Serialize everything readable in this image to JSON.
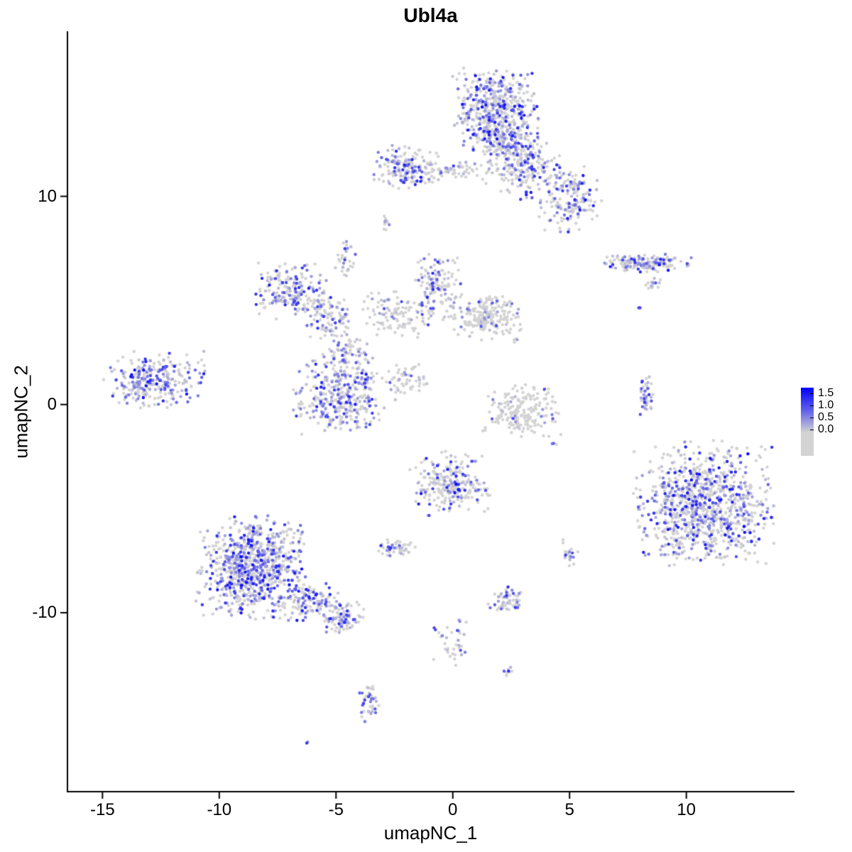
{
  "chart_data": {
    "type": "scatter",
    "title": "Ubl4a",
    "xlabel": "umapNC_1",
    "ylabel": "umapNC_2",
    "xlim": [
      -16.5,
      14.6
    ],
    "ylim": [
      -18.6,
      17.9
    ],
    "x_ticks": [
      "-15",
      "-10",
      "-5",
      "0",
      "5",
      "10"
    ],
    "y_ticks": [
      "-10",
      "0",
      "10"
    ],
    "grid": false,
    "legend": {
      "position": "right",
      "labels": [
        "1.5",
        "1.0",
        "0.5",
        "0.0"
      ],
      "low_color": "#d3d3d3",
      "high_color": "#0000ff",
      "vmax": 1.6
    },
    "point_color_zero": "#d3d3d3",
    "clusters": [
      {
        "name": "top-main",
        "n": 520,
        "cx": 1.8,
        "cy": 14.1,
        "sx": 0.85,
        "sy": 0.95,
        "colored": 0.45,
        "vmax": 1.5
      },
      {
        "name": "top-main-neck",
        "n": 90,
        "cx": 2.2,
        "cy": 12.6,
        "sx": 0.5,
        "sy": 0.5,
        "colored": 0.4,
        "vmax": 1.3
      },
      {
        "name": "top-right-branch",
        "n": 200,
        "cx": 3.0,
        "cy": 11.6,
        "sx": 0.75,
        "sy": 0.65,
        "colored": 0.4,
        "vmax": 1.4
      },
      {
        "name": "top-right-lower",
        "n": 180,
        "cx": 5.0,
        "cy": 9.9,
        "sx": 0.65,
        "sy": 0.75,
        "colored": 0.45,
        "vmax": 1.5
      },
      {
        "name": "dark-blob",
        "n": 7,
        "cx": 3.2,
        "cy": 10.1,
        "sx": 0.14,
        "sy": 0.2,
        "colored": 1.0,
        "vmax": 1.7
      },
      {
        "name": "top-left",
        "n": 150,
        "cx": -2.1,
        "cy": 11.4,
        "sx": 0.7,
        "sy": 0.5,
        "colored": 0.5,
        "vmax": 1.5
      },
      {
        "name": "top-strip",
        "n": 70,
        "cx": 0.2,
        "cy": 11.2,
        "sx": 1.2,
        "sy": 0.25,
        "colored": 0.35,
        "vmax": 1.2
      },
      {
        "name": "small-upper-left",
        "n": 28,
        "cx": -4.6,
        "cy": 7.1,
        "sx": 0.2,
        "sy": 0.45,
        "colored": 0.5,
        "vmax": 1.2
      },
      {
        "name": "tiny-mid-high",
        "n": 10,
        "cx": -2.9,
        "cy": 8.7,
        "sx": 0.15,
        "sy": 0.25,
        "colored": 0.3,
        "vmax": 0.9
      },
      {
        "name": "mid-left",
        "n": 190,
        "cx": -6.9,
        "cy": 5.5,
        "sx": 0.7,
        "sy": 0.65,
        "colored": 0.5,
        "vmax": 1.4
      },
      {
        "name": "arc-upper",
        "n": 90,
        "cx": -5.3,
        "cy": 4.2,
        "sx": 0.5,
        "sy": 0.6,
        "colored": 0.4,
        "vmax": 1.2
      },
      {
        "name": "arc-lower",
        "n": 90,
        "cx": -4.5,
        "cy": 2.6,
        "sx": 0.5,
        "sy": 0.6,
        "colored": 0.4,
        "vmax": 1.2
      },
      {
        "name": "center-top",
        "n": 130,
        "cx": -0.7,
        "cy": 5.7,
        "sx": 0.5,
        "sy": 0.75,
        "colored": 0.4,
        "vmax": 1.3
      },
      {
        "name": "center-mid",
        "n": 110,
        "cx": -2.3,
        "cy": 4.4,
        "sx": 0.75,
        "sy": 0.55,
        "colored": 0.3,
        "vmax": 1.1
      },
      {
        "name": "right-of-center",
        "n": 200,
        "cx": 1.5,
        "cy": 4.2,
        "sx": 0.75,
        "sy": 0.5,
        "colored": 0.2,
        "vmax": 1.1
      },
      {
        "name": "center-cluster",
        "n": 340,
        "cx": -4.9,
        "cy": 0.4,
        "sx": 0.9,
        "sy": 0.85,
        "colored": 0.5,
        "vmax": 1.4
      },
      {
        "name": "diag-streak",
        "n": 55,
        "cx": -2.0,
        "cy": 1.1,
        "sx": 0.42,
        "sy": 0.4,
        "colored": 0.2,
        "vmax": 1.0
      },
      {
        "name": "far-left",
        "n": 280,
        "cx": -12.8,
        "cy": 1.2,
        "sx": 1.0,
        "sy": 0.62,
        "colored": 0.55,
        "vmax": 1.5
      },
      {
        "name": "crescent",
        "n": 190,
        "cx": 3.0,
        "cy": -0.3,
        "sx": 0.8,
        "sy": 0.58,
        "colored": 0.08,
        "vmax": 1.2
      },
      {
        "name": "small-vertical",
        "n": 38,
        "cx": 8.3,
        "cy": 0.4,
        "sx": 0.13,
        "sy": 0.48,
        "colored": 0.5,
        "vmax": 1.3
      },
      {
        "name": "right-band",
        "n": 170,
        "cx": 8.3,
        "cy": 6.8,
        "sx": 0.9,
        "sy": 0.2,
        "colored": 0.45,
        "vmax": 1.5
      },
      {
        "name": "right-band-sub",
        "n": 16,
        "cx": 8.6,
        "cy": 5.8,
        "sx": 0.22,
        "sy": 0.16,
        "colored": 0.3,
        "vmax": 1.0
      },
      {
        "name": "big-right",
        "n": 950,
        "cx": 10.8,
        "cy": -4.8,
        "sx": 1.4,
        "sy": 1.4,
        "colored": 0.45,
        "vmax": 1.5
      },
      {
        "name": "bottom-left",
        "n": 820,
        "cx": -8.6,
        "cy": -7.8,
        "sx": 1.1,
        "sy": 1.15,
        "colored": 0.55,
        "vmax": 1.5
      },
      {
        "name": "bottom-left-tail",
        "n": 120,
        "cx": -6.2,
        "cy": -9.4,
        "sx": 0.65,
        "sy": 0.5,
        "colored": 0.5,
        "vmax": 1.4
      },
      {
        "name": "bottom-left-tail2",
        "n": 90,
        "cx": -4.8,
        "cy": -10.3,
        "sx": 0.5,
        "sy": 0.4,
        "colored": 0.5,
        "vmax": 1.4
      },
      {
        "name": "mid-bottom",
        "n": 250,
        "cx": -0.1,
        "cy": -3.8,
        "sx": 0.8,
        "sy": 0.72,
        "colored": 0.35,
        "vmax": 1.5
      },
      {
        "name": "small-left-low",
        "n": 48,
        "cx": -2.4,
        "cy": -6.9,
        "sx": 0.38,
        "sy": 0.22,
        "colored": 0.4,
        "vmax": 1.3
      },
      {
        "name": "small-right-low",
        "n": 22,
        "cx": 5.0,
        "cy": -7.1,
        "sx": 0.17,
        "sy": 0.3,
        "colored": 0.3,
        "vmax": 1.2
      },
      {
        "name": "small-low-mid",
        "n": 55,
        "cx": 2.3,
        "cy": -9.4,
        "sx": 0.36,
        "sy": 0.3,
        "colored": 0.5,
        "vmax": 1.3
      },
      {
        "name": "trail-bottom",
        "n": 38,
        "cx": -0.1,
        "cy": -11.4,
        "sx": 0.42,
        "sy": 0.55,
        "colored": 0.4,
        "vmax": 1.3
      },
      {
        "name": "tiny-bottom",
        "n": 9,
        "cx": 2.4,
        "cy": -12.8,
        "sx": 0.14,
        "sy": 0.18,
        "colored": 0.6,
        "vmax": 1.3
      },
      {
        "name": "bottom-small",
        "n": 42,
        "cx": -3.6,
        "cy": -14.3,
        "sx": 0.2,
        "sy": 0.55,
        "colored": 0.6,
        "vmax": 1.4
      },
      {
        "name": "dark-dot",
        "n": 2,
        "cx": -6.2,
        "cy": -16.3,
        "sx": 0.07,
        "sy": 0.06,
        "colored": 1.0,
        "vmax": 1.7
      },
      {
        "name": "single-1",
        "n": 2,
        "cx": 0.9,
        "cy": 12.4,
        "sx": 0.1,
        "sy": 0.1,
        "colored": 0.5,
        "vmax": 1.0
      },
      {
        "name": "single-2",
        "n": 2,
        "cx": 8.0,
        "cy": 4.6,
        "sx": 0.08,
        "sy": 0.08,
        "colored": 1.0,
        "vmax": 1.2
      },
      {
        "name": "single-3",
        "n": 3,
        "cx": 4.4,
        "cy": -1.9,
        "sx": 0.12,
        "sy": 0.1,
        "colored": 0.6,
        "vmax": 1.2
      },
      {
        "name": "single-4",
        "n": 2,
        "cx": 2.7,
        "cy": 2.9,
        "sx": 0.1,
        "sy": 0.1,
        "colored": 0.5,
        "vmax": 1.0
      }
    ]
  }
}
